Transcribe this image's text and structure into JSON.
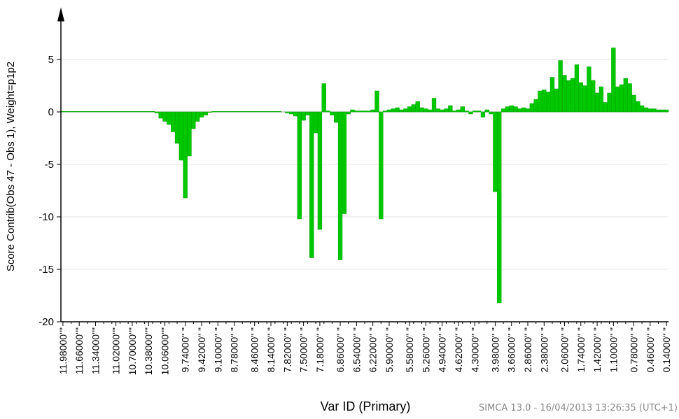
{
  "chart_data": {
    "type": "bar",
    "y_label": "Score Contrib(Obs 47 - Obs 1), Weight=p1p2",
    "x_label": "Var ID (Primary)",
    "footer": "SIMCA 13.0 - 16/04/2013 13:26:35 (UTC+1)",
    "color": "#00c800",
    "grid": true,
    "ylim": [
      -20,
      9.7
    ],
    "yticks": [
      -20,
      -15,
      -10,
      -5,
      0,
      5
    ],
    "categories": [
      "11.98000\"\"",
      null,
      null,
      null,
      "11.66000\"\"",
      null,
      null,
      null,
      "11.34000\"\"",
      null,
      null,
      null,
      null,
      "11.02000\"\"",
      null,
      null,
      null,
      "10.70000\"\"",
      null,
      null,
      null,
      "10.38000\"\"",
      null,
      null,
      null,
      "10.06000\"\"",
      null,
      null,
      null,
      null,
      "9.74000\" \"",
      null,
      null,
      null,
      "9.42000\" \"",
      null,
      null,
      null,
      "9.10000\" \"",
      null,
      null,
      null,
      "8.78000\" \"",
      null,
      null,
      null,
      null,
      "8.46000\" \"",
      null,
      null,
      null,
      "8.14000\" \"",
      null,
      null,
      null,
      "7.82000\" \"",
      null,
      null,
      null,
      "7.50000\" \"",
      null,
      null,
      null,
      "7.18000\" \"",
      null,
      null,
      null,
      null,
      "6.86000\" \"",
      null,
      null,
      null,
      "6.54000\" \"",
      null,
      null,
      null,
      "6.22000\" \"",
      null,
      null,
      null,
      "5.90000\" \"",
      null,
      null,
      null,
      null,
      "5.58000\" \"",
      null,
      null,
      null,
      "5.26000\" \"",
      null,
      null,
      null,
      "4.94000\" \"",
      null,
      null,
      null,
      "4.62000\" \"",
      null,
      null,
      null,
      "4.30000\" \"",
      null,
      null,
      null,
      null,
      "3.98000\" \"",
      null,
      null,
      null,
      "3.66000\" \"",
      null,
      null,
      null,
      "2.86000\" \"",
      null,
      null,
      null,
      "2.38000\" \"",
      null,
      null,
      null,
      null,
      "2.06000\" \"",
      null,
      null,
      null,
      "1.74000\" \"",
      null,
      null,
      null,
      "1.42000\" \"",
      null,
      null,
      null,
      "1.10000\" \"",
      null,
      null,
      null,
      null,
      "0.78000\" \"",
      null,
      null,
      null,
      "0.46000\" \"",
      null,
      null,
      null,
      "0.14000\" \""
    ],
    "values": [
      0.05,
      0.05,
      0.05,
      0.05,
      0.05,
      0.05,
      0.05,
      0.05,
      0.05,
      0.05,
      0.05,
      0.05,
      0.05,
      0.05,
      0.05,
      0.05,
      0.05,
      0.05,
      0.05,
      0.05,
      0.05,
      0.05,
      0.05,
      -0.1,
      -0.6,
      -0.9,
      -1.2,
      -1.9,
      -3.0,
      -4.6,
      -8.2,
      -4.2,
      -1.6,
      -0.9,
      -0.5,
      -0.3,
      -0.05,
      0.05,
      0.05,
      0.05,
      0.05,
      0.05,
      0.05,
      0.05,
      0.05,
      0.05,
      0.05,
      0.05,
      0.05,
      0.05,
      0.05,
      0.05,
      0.05,
      0.05,
      0,
      -0.1,
      -0.2,
      -0.4,
      -10.2,
      -0.8,
      -0.3,
      -13.9,
      -2.0,
      -11.2,
      2.7,
      0.1,
      -0.3,
      -1.0,
      -14.1,
      -9.7,
      -0.2,
      0.2,
      0.1,
      0.1,
      0.1,
      0.1,
      0.2,
      2.0,
      -10.2,
      0.1,
      0.2,
      0.3,
      0.4,
      0.2,
      0.3,
      0.5,
      0.7,
      1.0,
      0.4,
      0.3,
      0.2,
      1.3,
      0.3,
      0.2,
      0.3,
      0.6,
      0.1,
      0.2,
      0.5,
      0.1,
      -0.2,
      0.1,
      0.1,
      -0.5,
      0.2,
      -0.2,
      -7.6,
      -18.2,
      0.3,
      0.5,
      0.6,
      0.5,
      0.3,
      0.4,
      0.3,
      0.8,
      1.2,
      2.0,
      2.1,
      1.9,
      3.3,
      2.2,
      4.9,
      3.5,
      3.0,
      3.2,
      4.5,
      2.8,
      2.5,
      4.3,
      3.0,
      1.8,
      2.4,
      0.9,
      1.8,
      6.1,
      2.4,
      2.6,
      3.2,
      2.7,
      1.6,
      1.0,
      0.6,
      0.4,
      0.3,
      0.3,
      0.2,
      0.2,
      0.2
    ]
  }
}
